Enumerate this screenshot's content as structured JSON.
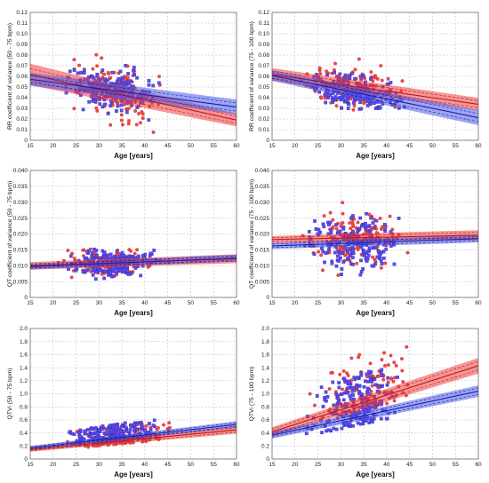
{
  "figure": {
    "colors": {
      "group_a": "#f04a4a",
      "group_b": "#5a4cf0",
      "band_a": "#f03c3c",
      "band_b": "#4a5be8",
      "overlap": "#d84fd4",
      "fit_a": "#b81818",
      "fit_b": "#1c1ca8"
    }
  },
  "chart_data": [
    {
      "type": "scatter",
      "title": "",
      "xlabel": "Age [years]",
      "ylabel": "RR coefficient of variance (50 - 75 bpm)",
      "xlim": [
        15,
        60
      ],
      "ylim": [
        0,
        0.12
      ],
      "xticks": [
        "15",
        "20",
        "25",
        "30",
        "35",
        "40",
        "45",
        "50",
        "55",
        "60"
      ],
      "yticks": [
        "0",
        "0.01",
        "0.02",
        "0.03",
        "0.04",
        "0.05",
        "0.06",
        "0.07",
        "0.08",
        "0.09",
        "0.10",
        "0.11",
        "0.12"
      ],
      "grid": true,
      "series": [
        {
          "color_key": "group_a",
          "marker": "circle",
          "fit": [
            0.076,
            -0.00095
          ],
          "ci": [
            0.01,
            0.006
          ],
          "cloud": {
            "x_center": 33,
            "x_spread": 8,
            "y_sd": 0.018,
            "n": 130,
            "seed": 11
          }
        },
        {
          "color_key": "group_b",
          "marker": "square",
          "fit": [
            0.066,
            -0.00058
          ],
          "ci": [
            0.006,
            0.007
          ],
          "cloud": {
            "x_center": 33,
            "x_spread": 7,
            "y_sd": 0.013,
            "n": 200,
            "seed": 12
          }
        }
      ]
    },
    {
      "type": "scatter",
      "title": "",
      "xlabel": "Age [years]",
      "ylabel": "RR coefficient of variance (75 - 100 bpm)",
      "xlim": [
        15,
        60
      ],
      "ylim": [
        0,
        0.12
      ],
      "xticks": [
        "15",
        "20",
        "25",
        "30",
        "35",
        "40",
        "45",
        "50",
        "55",
        "60"
      ],
      "yticks": [
        "0",
        "0.01",
        "0.02",
        "0.03",
        "0.04",
        "0.05",
        "0.06",
        "0.07",
        "0.08",
        "0.09",
        "0.10",
        "0.11",
        "0.12"
      ],
      "grid": true,
      "series": [
        {
          "color_key": "group_a",
          "marker": "circle",
          "fit": [
            0.071,
            -0.00062
          ],
          "ci": [
            0.006,
            0.006
          ],
          "cloud": {
            "x_center": 33,
            "x_spread": 8,
            "y_sd": 0.014,
            "n": 130,
            "seed": 21
          }
        },
        {
          "color_key": "group_b",
          "marker": "square",
          "fit": [
            0.074,
            -0.00088
          ],
          "ci": [
            0.005,
            0.007
          ],
          "cloud": {
            "x_center": 33,
            "x_spread": 7,
            "y_sd": 0.011,
            "n": 200,
            "seed": 22
          }
        }
      ]
    },
    {
      "type": "scatter",
      "title": "",
      "xlabel": "Age [years]",
      "ylabel": "QT coefficient of variance (50 - 75 bpm)",
      "xlim": [
        15,
        60
      ],
      "ylim": [
        0,
        0.04
      ],
      "xticks": [
        "15",
        "20",
        "25",
        "30",
        "35",
        "40",
        "45",
        "50",
        "55",
        "60"
      ],
      "yticks": [
        "0",
        "0.005",
        "0.010",
        "0.015",
        "0.020",
        "0.025",
        "0.030",
        "0.035",
        "0.040"
      ],
      "grid": true,
      "series": [
        {
          "color_key": "group_a",
          "marker": "circle",
          "fit": [
            0.0092,
            5e-05
          ],
          "ci": [
            0.0012,
            0.0014
          ],
          "cloud": {
            "x_center": 33,
            "x_spread": 8,
            "y_sd": 0.0026,
            "n": 130,
            "seed": 31
          }
        },
        {
          "color_key": "group_b",
          "marker": "square",
          "fit": [
            0.0088,
            6e-05
          ],
          "ci": [
            0.0009,
            0.0011
          ],
          "cloud": {
            "x_center": 33,
            "x_spread": 7,
            "y_sd": 0.0025,
            "n": 200,
            "seed": 32
          }
        }
      ]
    },
    {
      "type": "scatter",
      "title": "",
      "xlabel": "Age [years]",
      "ylabel": "QT coefficient of variance (75 - 100 bpm)",
      "xlim": [
        15,
        60
      ],
      "ylim": [
        0,
        0.04
      ],
      "xticks": [
        "15",
        "20",
        "25",
        "30",
        "35",
        "40",
        "45",
        "50",
        "55",
        "60"
      ],
      "yticks": [
        "0",
        "0.005",
        "0.010",
        "0.015",
        "0.020",
        "0.025",
        "0.030",
        "0.035",
        "0.040"
      ],
      "grid": true,
      "series": [
        {
          "color_key": "group_a",
          "marker": "circle",
          "fit": [
            0.0178,
            3e-05
          ],
          "ci": [
            0.0011,
            0.0016
          ],
          "cloud": {
            "x_center": 33,
            "x_spread": 8,
            "y_sd": 0.0052,
            "n": 130,
            "seed": 41
          }
        },
        {
          "color_key": "group_b",
          "marker": "square",
          "fit": [
            0.0155,
            5e-05
          ],
          "ci": [
            0.001,
            0.0012
          ],
          "cloud": {
            "x_center": 33,
            "x_spread": 7,
            "y_sd": 0.0048,
            "n": 200,
            "seed": 42
          }
        }
      ]
    },
    {
      "type": "scatter",
      "title": "",
      "xlabel": "Age [years]",
      "ylabel": "QTVi (50 - 75 bpm)",
      "xlim": [
        15,
        60
      ],
      "ylim": [
        0,
        2.0
      ],
      "xticks": [
        "15",
        "20",
        "25",
        "30",
        "35",
        "40",
        "45",
        "50",
        "55",
        "60"
      ],
      "yticks": [
        "0",
        "0.2",
        "0.4",
        "0.6",
        "0.8",
        "1.0",
        "1.2",
        "1.4",
        "1.6",
        "1.8",
        "2.0"
      ],
      "grid": true,
      "series": [
        {
          "color_key": "group_a",
          "marker": "circle",
          "fit": [
            0.04,
            0.0068
          ],
          "ci": [
            0.03,
            0.06
          ],
          "cloud": {
            "x_center": 35,
            "x_spread": 8,
            "y_sd": 0.09,
            "n": 130,
            "seed": 51
          }
        },
        {
          "color_key": "group_b",
          "marker": "square",
          "fit": [
            0.05,
            0.008
          ],
          "ci": [
            0.03,
            0.05
          ],
          "cloud": {
            "x_center": 33,
            "x_spread": 7,
            "y_sd": 0.08,
            "n": 200,
            "seed": 52
          }
        }
      ]
    },
    {
      "type": "scatter",
      "title": "",
      "xlabel": "Age [years]",
      "ylabel": "QTVi (75 - 100 bpm)",
      "xlim": [
        15,
        60
      ],
      "ylim": [
        0,
        2.0
      ],
      "xticks": [
        "15",
        "20",
        "25",
        "30",
        "35",
        "40",
        "45",
        "50",
        "55",
        "60"
      ],
      "yticks": [
        "0",
        "0.2",
        "0.4",
        "0.6",
        "0.8",
        "1.0",
        "1.2",
        "1.4",
        "1.6",
        "1.8",
        "2.0"
      ],
      "grid": true,
      "series": [
        {
          "color_key": "group_a",
          "marker": "circle",
          "fit": [
            0.08,
            0.0225
          ],
          "ci": [
            0.07,
            0.12
          ],
          "cloud": {
            "x_center": 34,
            "x_spread": 8,
            "y_sd": 0.28,
            "n": 130,
            "seed": 61
          }
        },
        {
          "color_key": "group_b",
          "marker": "square",
          "fit": [
            0.14,
            0.015
          ],
          "ci": [
            0.05,
            0.09
          ],
          "cloud": {
            "x_center": 33,
            "x_spread": 7,
            "y_sd": 0.25,
            "n": 200,
            "seed": 62
          }
        }
      ]
    }
  ]
}
